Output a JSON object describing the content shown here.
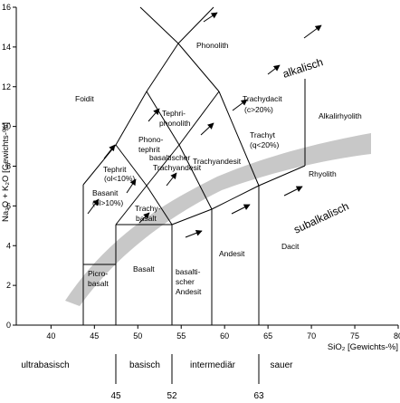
{
  "chart_data": {
    "type": "diagram",
    "xlabel": "SiO₂ [Gewichts-%]",
    "ylabel": "Na₂O + K₂O [Gewichts-%]",
    "x_ticks": [
      "40",
      "45",
      "50",
      "55",
      "60",
      "65",
      "70",
      "75",
      "80"
    ],
    "y_ticks": [
      "0",
      "2",
      "4",
      "6",
      "8",
      "10",
      "12",
      "14",
      "16"
    ],
    "xlim": [
      36,
      80
    ],
    "ylim": [
      0,
      16
    ],
    "field_labels": {
      "foidit": "Foidit",
      "phonolith": "Phonolith",
      "tephriphonolith_1": "Tephri-",
      "tephriphonolith_2": "phonolith",
      "phonotephrit_1": "Phono-",
      "phonotephrit_2": "tephrit",
      "tephrit_1": "Tephrit",
      "tephrit_2": "(ol<10%)",
      "basanit_1": "Basanit",
      "basanit_2": "(ol>10%)",
      "basaltischer_trachyandesit_1": "basaltischer",
      "basaltischer_trachyandesit_2": "Trachyandesit",
      "trachybasalt_1": "Trachy-",
      "trachybasalt_2": "basalt",
      "trachyandesit": "Trachyandesit",
      "trachydacit_1": "Trachydacit",
      "trachydacit_2": "(c>20%)",
      "trachyt_1": "Trachyt",
      "trachyt_2": "(q<20%)",
      "alkalirhyolith": "Alkalirhyolith",
      "rhyolith": "Rhyolith",
      "picrobasalt_1": "Picro-",
      "picrobasalt_2": "basalt",
      "basalt": "Basalt",
      "basaltischer_andesit_1": "basalti-",
      "basaltischer_andesit_2": "scher",
      "basaltischer_andesit_3": "Andesit",
      "andesit": "Andesit",
      "dacit": "Dacit"
    },
    "series_labels": {
      "alkalisch": "alkalisch",
      "subalkalisch": "subalkalisch"
    },
    "classes": [
      "ultrabasisch",
      "basisch",
      "intermediär",
      "sauer"
    ],
    "class_boundaries": [
      "45",
      "52",
      "63"
    ]
  }
}
